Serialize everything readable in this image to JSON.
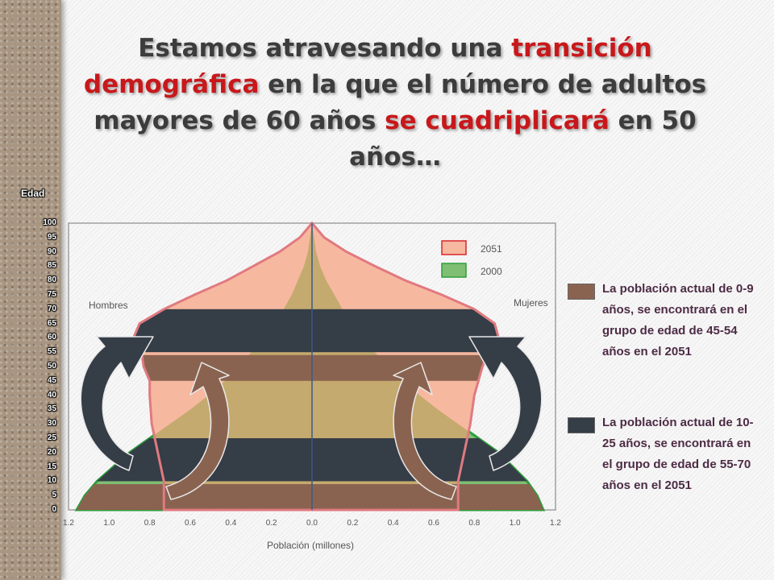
{
  "title": {
    "parts": [
      {
        "text": "Estamos atravesando una ",
        "highlight": false
      },
      {
        "text": "transición demográfica",
        "highlight": true
      },
      {
        "text": " en la que el número de adultos mayores de 60 años ",
        "highlight": false
      },
      {
        "text": "se cuadriplicará",
        "highlight": true
      },
      {
        "text": " en 50 años…",
        "highlight": false
      }
    ]
  },
  "colors": {
    "highlight_text": "#c8181b",
    "series_2051_fill": "#f7b8a0",
    "series_2051_stroke": "#e07a80",
    "series_2000_fill": "#7fbf73",
    "series_2000_stroke": "#2f9e3c",
    "band_0_9": "#8a6350",
    "band_10_25": "#353d47",
    "overlap_fill": "#c4aa6e"
  },
  "chart_data": {
    "type": "population-pyramid",
    "ylabel": "Edad",
    "xlabel": "Población (millones)",
    "age_ticks": [
      0,
      5,
      10,
      15,
      20,
      25,
      30,
      35,
      40,
      45,
      50,
      55,
      60,
      65,
      70,
      75,
      80,
      85,
      90,
      95,
      100
    ],
    "x_ticks": [
      "1.2",
      "1.0",
      "0.8",
      "0.6",
      "0.4",
      "0.2",
      "0.0",
      "0.2",
      "0.4",
      "0.6",
      "0.8",
      "1.0",
      "1.2"
    ],
    "xlim": [
      -1.2,
      1.2
    ],
    "ylim": [
      0,
      100
    ],
    "side_labels": {
      "left": "Hombres",
      "right": "Mujeres"
    },
    "series": [
      {
        "name": "2051",
        "ages": [
          0,
          10,
          20,
          30,
          40,
          45,
          50,
          55,
          60,
          65,
          70,
          75,
          80,
          85,
          90,
          95,
          100
        ],
        "males": [
          0.73,
          0.73,
          0.76,
          0.79,
          0.8,
          0.8,
          0.83,
          0.84,
          0.88,
          0.85,
          0.73,
          0.58,
          0.42,
          0.29,
          0.16,
          0.06,
          0.0
        ],
        "females": [
          0.72,
          0.72,
          0.75,
          0.78,
          0.8,
          0.82,
          0.84,
          0.87,
          0.92,
          0.9,
          0.8,
          0.64,
          0.46,
          0.31,
          0.17,
          0.06,
          0.0
        ]
      },
      {
        "name": "2000",
        "ages": [
          0,
          5,
          10,
          15,
          20,
          25,
          30,
          35,
          40,
          45,
          50,
          55,
          60,
          65,
          70,
          75,
          80,
          85,
          90,
          95,
          100
        ],
        "males": [
          1.16,
          1.12,
          1.06,
          0.98,
          0.9,
          0.8,
          0.7,
          0.6,
          0.51,
          0.43,
          0.36,
          0.3,
          0.24,
          0.19,
          0.14,
          0.1,
          0.07,
          0.04,
          0.02,
          0.01,
          0.0
        ],
        "females": [
          1.14,
          1.11,
          1.06,
          0.99,
          0.92,
          0.82,
          0.72,
          0.62,
          0.53,
          0.45,
          0.38,
          0.31,
          0.25,
          0.2,
          0.15,
          0.11,
          0.07,
          0.04,
          0.02,
          0.01,
          0.0
        ]
      }
    ],
    "bands": [
      {
        "name": "0-9 años",
        "age_from": 0,
        "age_to": 9,
        "color_key": "band_0_9"
      },
      {
        "name": "10-25 años",
        "age_from": 10,
        "age_to": 25,
        "color_key": "band_10_25"
      },
      {
        "name": "45-54 años",
        "age_from": 45,
        "age_to": 54,
        "color_key": "band_0_9"
      },
      {
        "name": "55-70 años",
        "age_from": 55,
        "age_to": 70,
        "color_key": "band_10_25"
      }
    ],
    "legend": [
      "2051",
      "2000"
    ],
    "legend_position": "top-right"
  },
  "notes": [
    {
      "text": "La población actual de 0-9 años, se encontrará en el grupo de edad de 45-54 años en el 2051",
      "color_key": "band_0_9"
    },
    {
      "text": "La población actual de 10-25 años, se encontrará en el grupo de edad de 55-70 años en el 2051",
      "color_key": "band_10_25"
    }
  ]
}
